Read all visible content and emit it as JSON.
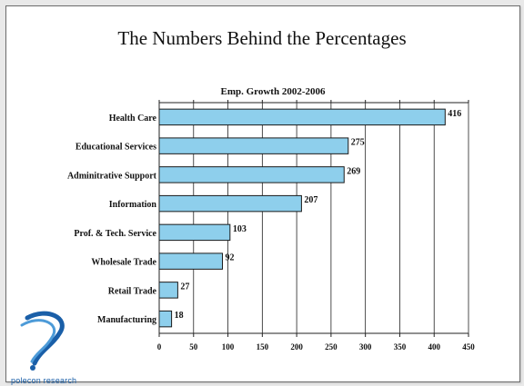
{
  "slide": {
    "title": "The Numbers Behind the Percentages"
  },
  "logo": {
    "text": "polecon research",
    "color": "#1a5fa8"
  },
  "chart_data": {
    "type": "bar",
    "orientation": "horizontal",
    "title": "Emp. Growth 2002-2006",
    "categories": [
      "Health Care",
      "Educational Services",
      "Adminitrative Support",
      "Information",
      "Prof. & Tech. Service",
      "Wholesale Trade",
      "Retail Trade",
      "Manufacturing"
    ],
    "values": [
      416,
      275,
      269,
      207,
      103,
      92,
      27,
      18
    ],
    "xlim": [
      0,
      450
    ],
    "x_ticks": [
      0,
      50,
      100,
      150,
      200,
      250,
      300,
      350,
      400,
      450
    ],
    "grid": true,
    "bar_color": "#8ecfec",
    "bar_edge_color": "#1a1a1a"
  }
}
